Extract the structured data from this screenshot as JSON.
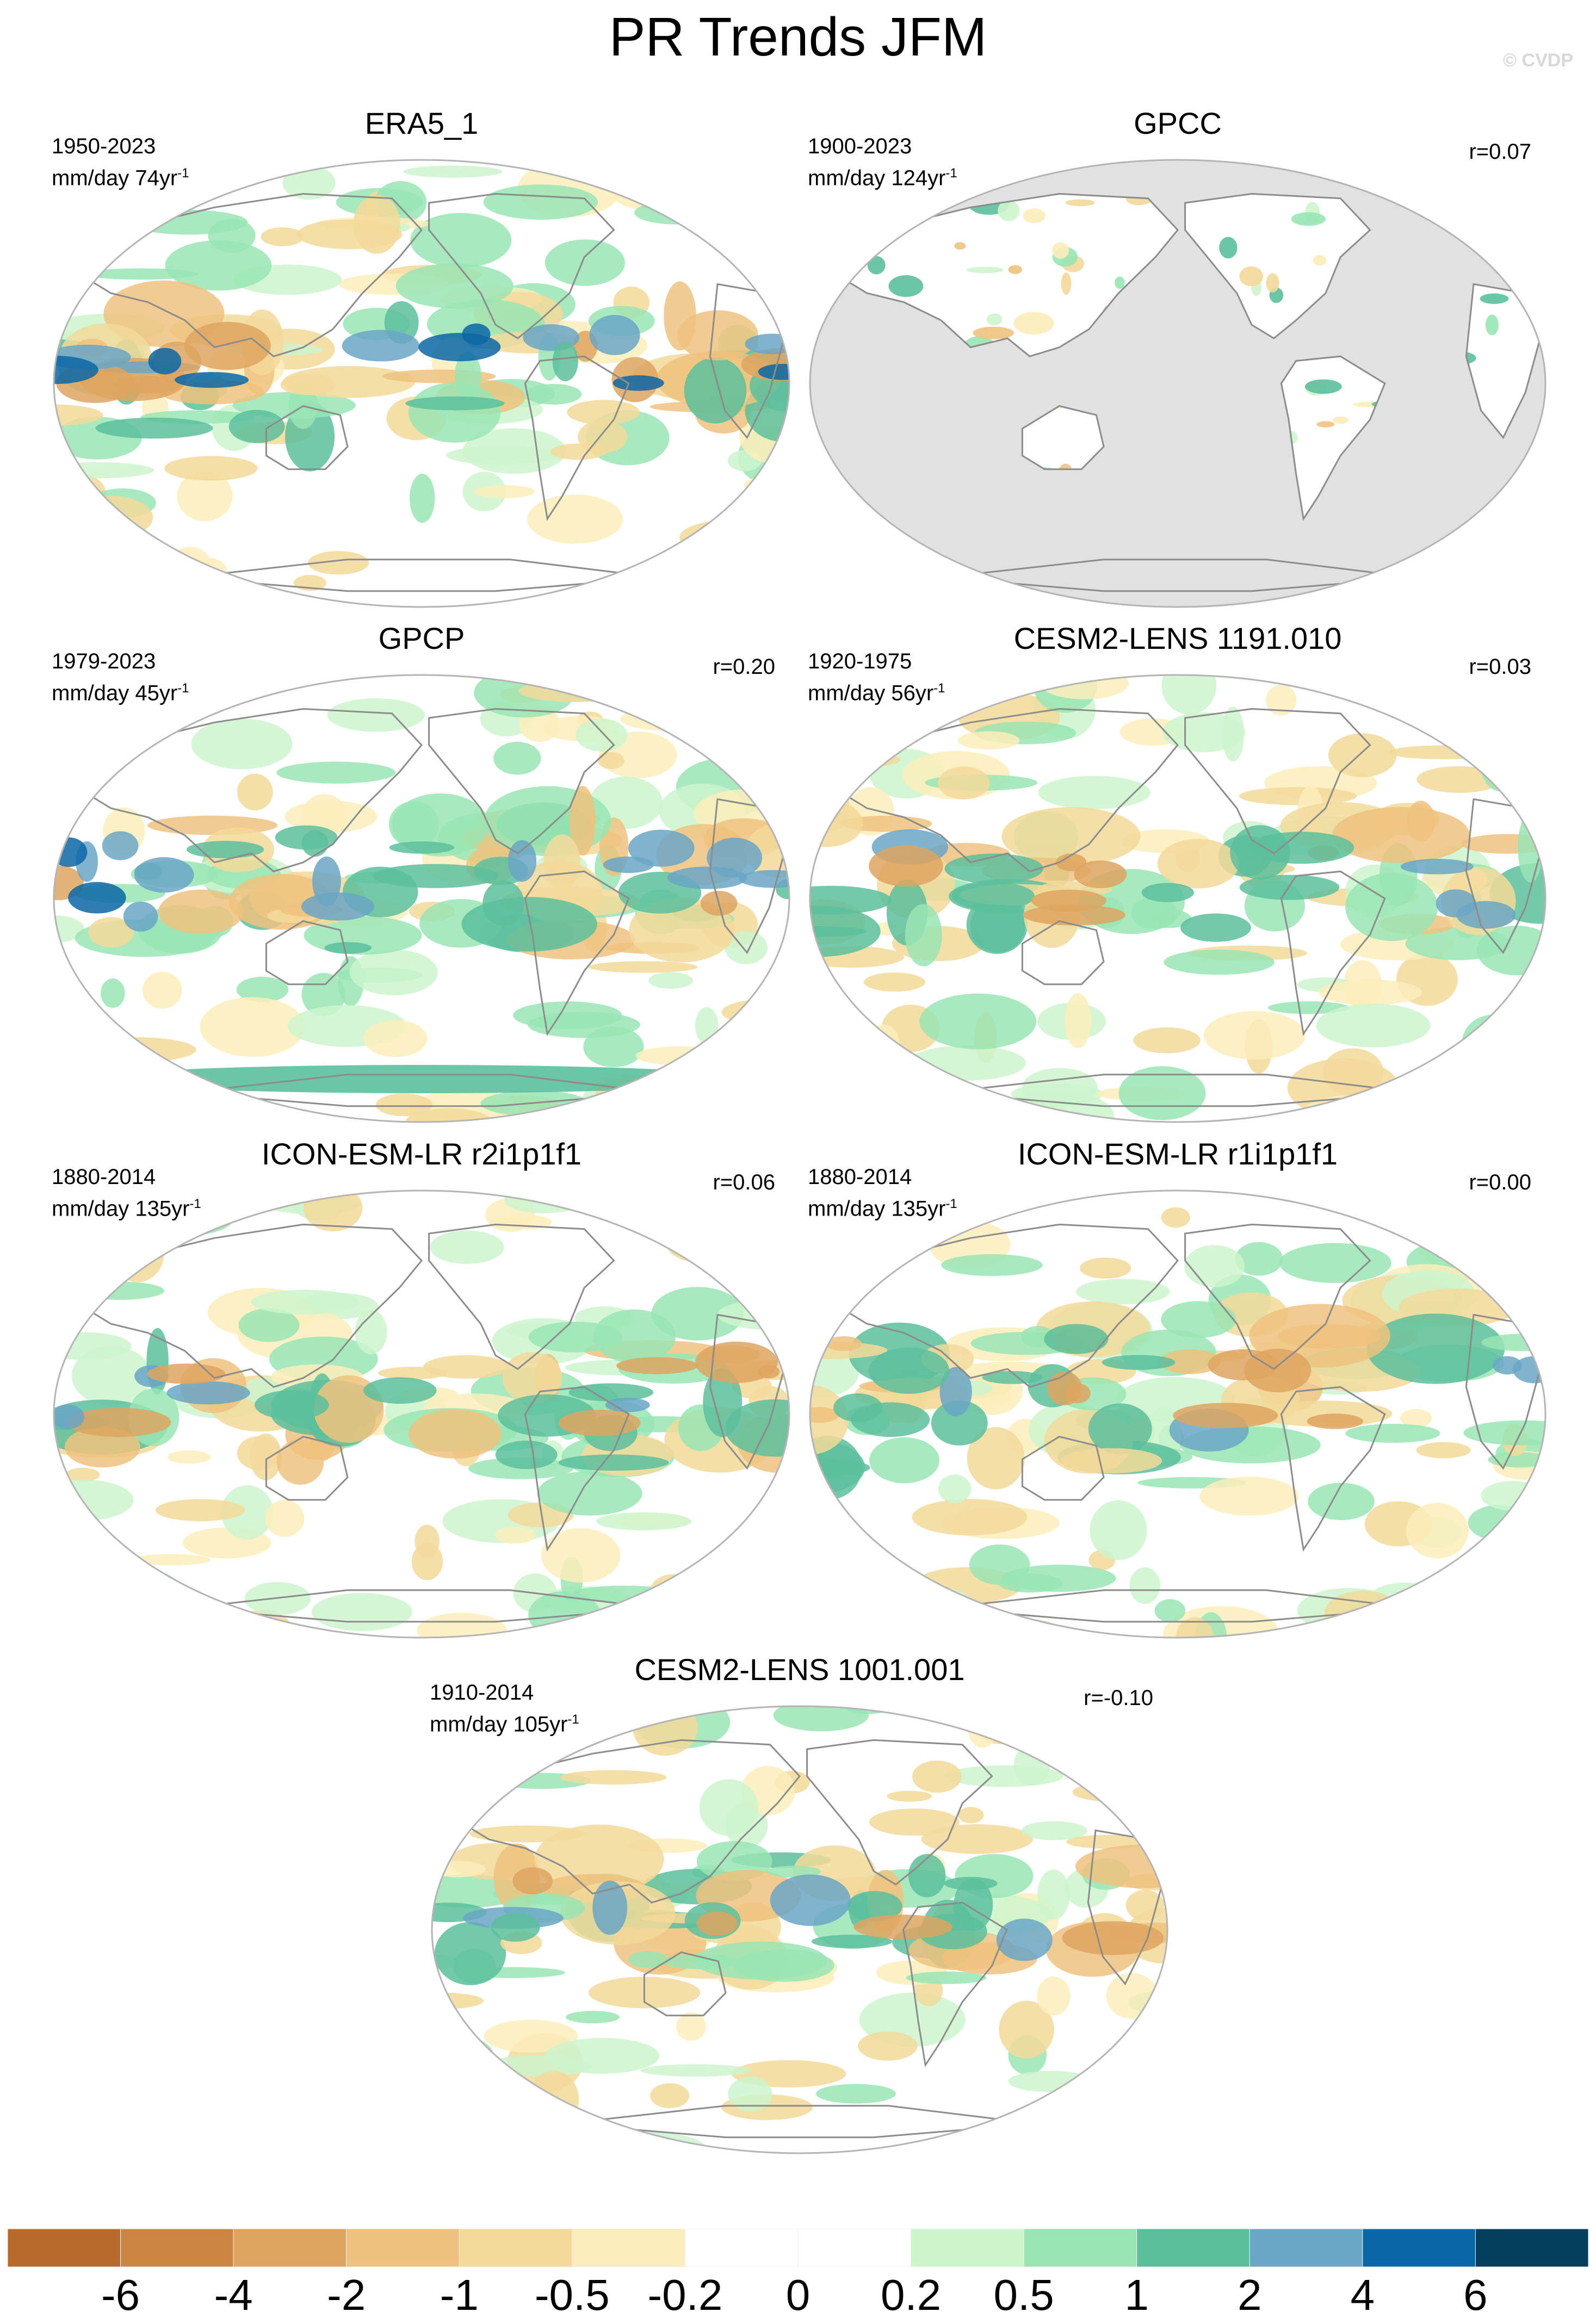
{
  "title": "PR Trends JFM",
  "watermark": "© CVDP",
  "panels": [
    {
      "name": "ERA5_1",
      "years": "1950-2023",
      "units": "mm/day 74yr",
      "units_exp": "-1",
      "r": "",
      "no_ocean_data": false
    },
    {
      "name": "GPCC",
      "years": "1900-2023",
      "units": "mm/day 124yr",
      "units_exp": "-1",
      "r": "r=0.07",
      "no_ocean_data": true
    },
    {
      "name": "GPCP",
      "years": "1979-2023",
      "units": "mm/day 45yr",
      "units_exp": "-1",
      "r": "r=0.20",
      "no_ocean_data": false
    },
    {
      "name": "CESM2-LENS 1191.010",
      "years": "1920-1975",
      "units": "mm/day 56yr",
      "units_exp": "-1",
      "r": "r=0.03",
      "no_ocean_data": false
    },
    {
      "name": "ICON-ESM-LR r2i1p1f1",
      "years": "1880-2014",
      "units": "mm/day 135yr",
      "units_exp": "-1",
      "r": "r=0.06",
      "no_ocean_data": false
    },
    {
      "name": "ICON-ESM-LR r1i1p1f1",
      "years": "1880-2014",
      "units": "mm/day 135yr",
      "units_exp": "-1",
      "r": "r=0.00",
      "no_ocean_data": false
    },
    {
      "name": "CESM2-LENS 1001.001",
      "years": "1910-2014",
      "units": "mm/day 105yr",
      "units_exp": "-1",
      "r": "r=-0.10",
      "no_ocean_data": false
    }
  ],
  "colorbar": {
    "labels": [
      "-6",
      "-4",
      "-2",
      "-1",
      "-0.5",
      "-0.2",
      "0",
      "0.2",
      "0.5",
      "1",
      "2",
      "4",
      "6"
    ],
    "colors": [
      "#b86a2c",
      "#cc8542",
      "#dea460",
      "#eec27e",
      "#f3d99a",
      "#fbedbb",
      "#ffffff",
      "#ffffff",
      "#ccf5cc",
      "#99e5b4",
      "#5cbf9c",
      "#6aa6c6",
      "#0a66a6",
      "#063e5e"
    ]
  },
  "map_style": {
    "ocean_missing": "#e1e1e1",
    "land_outline": "#8c8c8c",
    "border": "#b4b4b4"
  }
}
